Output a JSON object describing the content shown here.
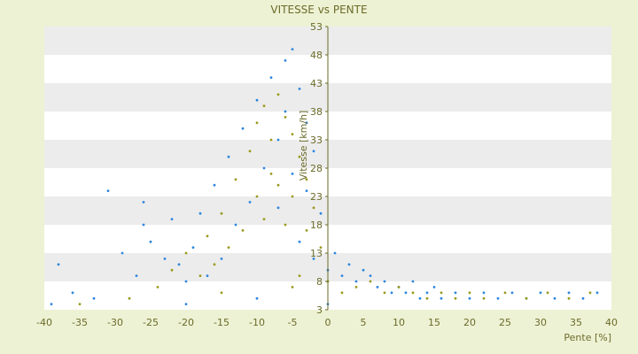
{
  "chart_data": {
    "type": "scatter",
    "title": "VITESSE vs PENTE",
    "xlabel": "Pente [%]",
    "ylabel": "Vitesse [km/h]",
    "xlim": [
      -40,
      40
    ],
    "ylim": [
      3,
      53
    ],
    "x_ticks": [
      "-40",
      "-35",
      "-30",
      "-25",
      "-20",
      "-15",
      "-10",
      "-5",
      "0",
      "5",
      "10",
      "15",
      "20",
      "25",
      "30",
      "35",
      "40"
    ],
    "y_ticks": [
      "3",
      "8",
      "13",
      "18",
      "23",
      "28",
      "33",
      "38",
      "43",
      "48",
      "53"
    ],
    "grid": true,
    "legend": "none",
    "colors": {
      "series_a": "#2e86de",
      "series_b": "#9a9a1e",
      "axis": "#6b6b2a"
    },
    "series": [
      {
        "points": [
          [
            -38,
            11
          ],
          [
            -36,
            6
          ],
          [
            -33,
            5
          ],
          [
            -31,
            24
          ],
          [
            -29,
            13
          ],
          [
            -27,
            9
          ],
          [
            -26,
            18
          ],
          [
            -26,
            22
          ],
          [
            -25,
            15
          ],
          [
            -23,
            12
          ],
          [
            -22,
            19
          ],
          [
            -21,
            11
          ],
          [
            -20,
            8
          ],
          [
            -19,
            14
          ],
          [
            -18,
            20
          ],
          [
            -17,
            9
          ],
          [
            -16,
            25
          ],
          [
            -15,
            12
          ],
          [
            -14,
            30
          ],
          [
            -13,
            18
          ],
          [
            -12,
            35
          ],
          [
            -11,
            22
          ],
          [
            -10,
            40
          ],
          [
            -9,
            28
          ],
          [
            -8,
            44
          ],
          [
            -7,
            33
          ],
          [
            -7,
            21
          ],
          [
            -6,
            47
          ],
          [
            -6,
            38
          ],
          [
            -5,
            49
          ],
          [
            -5,
            27
          ],
          [
            -4,
            42
          ],
          [
            -4,
            15
          ],
          [
            -3,
            36
          ],
          [
            -3,
            24
          ],
          [
            -2,
            31
          ],
          [
            -2,
            12
          ],
          [
            -1,
            20
          ],
          [
            0,
            10
          ],
          [
            1,
            13
          ],
          [
            2,
            9
          ],
          [
            3,
            11
          ],
          [
            4,
            8
          ],
          [
            5,
            10
          ],
          [
            6,
            9
          ],
          [
            7,
            7
          ],
          [
            8,
            8
          ],
          [
            9,
            6
          ],
          [
            10,
            7
          ],
          [
            11,
            6
          ],
          [
            12,
            8
          ],
          [
            13,
            5
          ],
          [
            14,
            6
          ],
          [
            15,
            7
          ],
          [
            16,
            5
          ],
          [
            18,
            6
          ],
          [
            20,
            5
          ],
          [
            22,
            6
          ],
          [
            24,
            5
          ],
          [
            26,
            6
          ],
          [
            28,
            5
          ],
          [
            30,
            6
          ],
          [
            32,
            5
          ],
          [
            34,
            6
          ],
          [
            36,
            5
          ],
          [
            38,
            6
          ],
          [
            -39,
            4
          ],
          [
            -20,
            4
          ],
          [
            -10,
            5
          ],
          [
            0,
            4
          ]
        ]
      },
      {
        "points": [
          [
            -28,
            5
          ],
          [
            -24,
            7
          ],
          [
            -22,
            10
          ],
          [
            -20,
            13
          ],
          [
            -18,
            9
          ],
          [
            -17,
            16
          ],
          [
            -16,
            11
          ],
          [
            -15,
            20
          ],
          [
            -14,
            14
          ],
          [
            -13,
            26
          ],
          [
            -12,
            17
          ],
          [
            -11,
            31
          ],
          [
            -10,
            23
          ],
          [
            -10,
            36
          ],
          [
            -9,
            19
          ],
          [
            -9,
            39
          ],
          [
            -8,
            27
          ],
          [
            -8,
            33
          ],
          [
            -7,
            41
          ],
          [
            -7,
            25
          ],
          [
            -6,
            37
          ],
          [
            -6,
            18
          ],
          [
            -5,
            34
          ],
          [
            -5,
            23
          ],
          [
            -4,
            30
          ],
          [
            -4,
            9
          ],
          [
            -3,
            26
          ],
          [
            -3,
            17
          ],
          [
            -2,
            21
          ],
          [
            -1,
            14
          ],
          [
            0,
            8
          ],
          [
            2,
            6
          ],
          [
            4,
            7
          ],
          [
            6,
            8
          ],
          [
            8,
            6
          ],
          [
            10,
            7
          ],
          [
            12,
            6
          ],
          [
            14,
            5
          ],
          [
            16,
            6
          ],
          [
            18,
            5
          ],
          [
            20,
            6
          ],
          [
            22,
            5
          ],
          [
            25,
            6
          ],
          [
            28,
            5
          ],
          [
            31,
            6
          ],
          [
            34,
            5
          ],
          [
            37,
            6
          ],
          [
            -35,
            4
          ],
          [
            -15,
            6
          ],
          [
            -5,
            7
          ]
        ]
      }
    ]
  }
}
